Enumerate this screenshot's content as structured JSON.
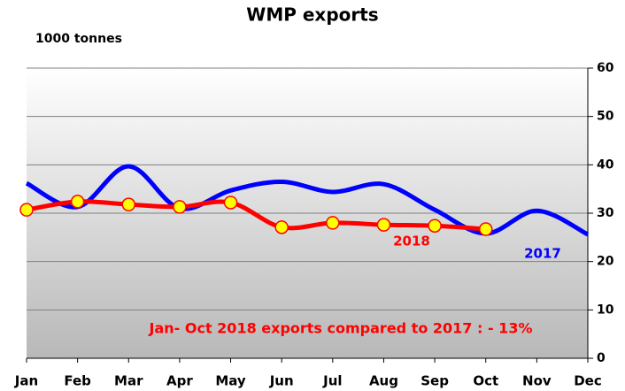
{
  "chart_data": {
    "type": "line",
    "title": "WMP exports",
    "y_unit_label": "1000 tonnes",
    "annotation": "Jan- Oct 2018 exports compared to 2017 : - 13%",
    "categories": [
      "Jan",
      "Feb",
      "Mar",
      "Apr",
      "May",
      "Jun",
      "Jul",
      "Aug",
      "Sep",
      "Oct",
      "Nov",
      "Dec"
    ],
    "series": [
      {
        "name": "2017",
        "color": "#0000ff",
        "values": [
          36.2,
          31.3,
          39.7,
          31,
          34.7,
          36.5,
          34.4,
          36,
          30.7,
          25.8,
          30.5,
          25.6
        ]
      },
      {
        "name": "2018",
        "color": "#ff0000",
        "marker_color": "#ffff00",
        "values": [
          30.7,
          32.4,
          31.8,
          31.3,
          32.2,
          27.1,
          28,
          27.6,
          27.4,
          26.7,
          null,
          null
        ]
      }
    ],
    "ylim": [
      0,
      60
    ],
    "yticks": [
      0,
      10,
      20,
      30,
      40,
      50,
      60
    ],
    "grid": true,
    "y_axis_side": "right"
  }
}
